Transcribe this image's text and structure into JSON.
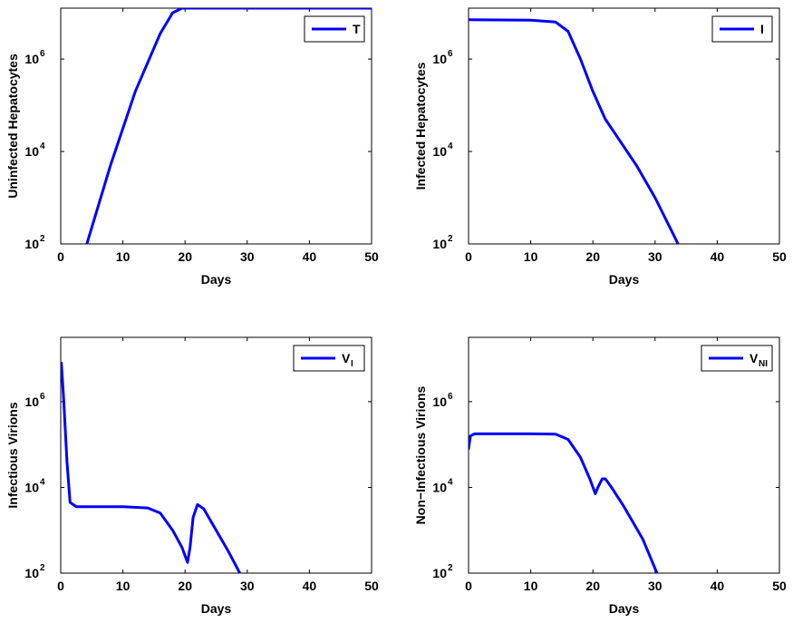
{
  "chart_data": [
    {
      "type": "line",
      "title": "",
      "xlabel": "Days",
      "ylabel": "Uninfected Hepatocytes",
      "xlim": [
        0,
        50
      ],
      "ylim_log10": [
        2,
        7.1
      ],
      "yscale": "log",
      "x_ticks": [
        0,
        10,
        20,
        30,
        40,
        50
      ],
      "y_tick_exponents": [
        2,
        4,
        6
      ],
      "legend": {
        "label": "T",
        "subscript": "",
        "position": "top-right"
      },
      "series": [
        {
          "name": "T",
          "color": "#0000ff",
          "points": [
            [
              4.2,
              2.0
            ],
            [
              8,
              3.7
            ],
            [
              12,
              5.3
            ],
            [
              16,
              6.55
            ],
            [
              18,
              7.0
            ],
            [
              19.5,
              7.1
            ],
            [
              20,
              7.1
            ],
            [
              50,
              7.1
            ]
          ]
        }
      ]
    },
    {
      "type": "line",
      "title": "",
      "xlabel": "Days",
      "ylabel": "Infected Hepatocytes",
      "xlim": [
        0,
        50
      ],
      "ylim_log10": [
        2,
        7.1
      ],
      "yscale": "log",
      "x_ticks": [
        0,
        10,
        20,
        30,
        40,
        50
      ],
      "y_tick_exponents": [
        2,
        4,
        6
      ],
      "legend": {
        "label": "I",
        "subscript": "",
        "position": "top-right"
      },
      "series": [
        {
          "name": "I",
          "color": "#0000ff",
          "points": [
            [
              0,
              6.85
            ],
            [
              10,
              6.84
            ],
            [
              14,
              6.8
            ],
            [
              16,
              6.6
            ],
            [
              18,
              6.0
            ],
            [
              20,
              5.3
            ],
            [
              22,
              4.7
            ],
            [
              24,
              4.3
            ],
            [
              27,
              3.7
            ],
            [
              30,
              3.0
            ],
            [
              33.7,
              2.0
            ]
          ]
        }
      ]
    },
    {
      "type": "line",
      "title": "",
      "xlabel": "Days",
      "ylabel": "Infectious Virions",
      "xlim": [
        0,
        50
      ],
      "ylim_log10": [
        2,
        7.5
      ],
      "yscale": "log",
      "x_ticks": [
        0,
        10,
        20,
        30,
        40,
        50
      ],
      "y_tick_exponents": [
        2,
        4,
        6
      ],
      "legend": {
        "label": "V",
        "subscript": "I",
        "position": "top-right"
      },
      "series": [
        {
          "name": "V_I",
          "color": "#0000ff",
          "points": [
            [
              0.1,
              6.9
            ],
            [
              0.5,
              6.0
            ],
            [
              1.0,
              4.6
            ],
            [
              1.5,
              3.65
            ],
            [
              2.5,
              3.55
            ],
            [
              10,
              3.55
            ],
            [
              14,
              3.52
            ],
            [
              16,
              3.4
            ],
            [
              18,
              3.0
            ],
            [
              19.5,
              2.6
            ],
            [
              20.4,
              2.25
            ],
            [
              20.8,
              2.6
            ],
            [
              21.3,
              3.3
            ],
            [
              22,
              3.6
            ],
            [
              23,
              3.5
            ],
            [
              25,
              3.0
            ],
            [
              27,
              2.5
            ],
            [
              28.8,
              2.0
            ]
          ]
        }
      ]
    },
    {
      "type": "line",
      "title": "",
      "xlabel": "Days",
      "ylabel": "Non−Infectious Virions",
      "xlim": [
        0,
        50
      ],
      "ylim_log10": [
        2,
        7.5
      ],
      "yscale": "log",
      "x_ticks": [
        0,
        10,
        20,
        30,
        40,
        50
      ],
      "y_tick_exponents": [
        2,
        4,
        6
      ],
      "legend": {
        "label": "V",
        "subscript": "NI",
        "position": "top-right"
      },
      "series": [
        {
          "name": "V_NI",
          "color": "#0000ff",
          "points": [
            [
              0,
              4.9
            ],
            [
              0.3,
              5.2
            ],
            [
              1,
              5.25
            ],
            [
              10,
              5.25
            ],
            [
              14,
              5.24
            ],
            [
              16,
              5.12
            ],
            [
              18,
              4.7
            ],
            [
              19.5,
              4.2
            ],
            [
              20.4,
              3.85
            ],
            [
              20.8,
              4.0
            ],
            [
              21.5,
              4.2
            ],
            [
              22,
              4.2
            ],
            [
              23,
              4.0
            ],
            [
              25,
              3.55
            ],
            [
              28,
              2.8
            ],
            [
              30.3,
              2.0
            ]
          ]
        }
      ]
    }
  ]
}
